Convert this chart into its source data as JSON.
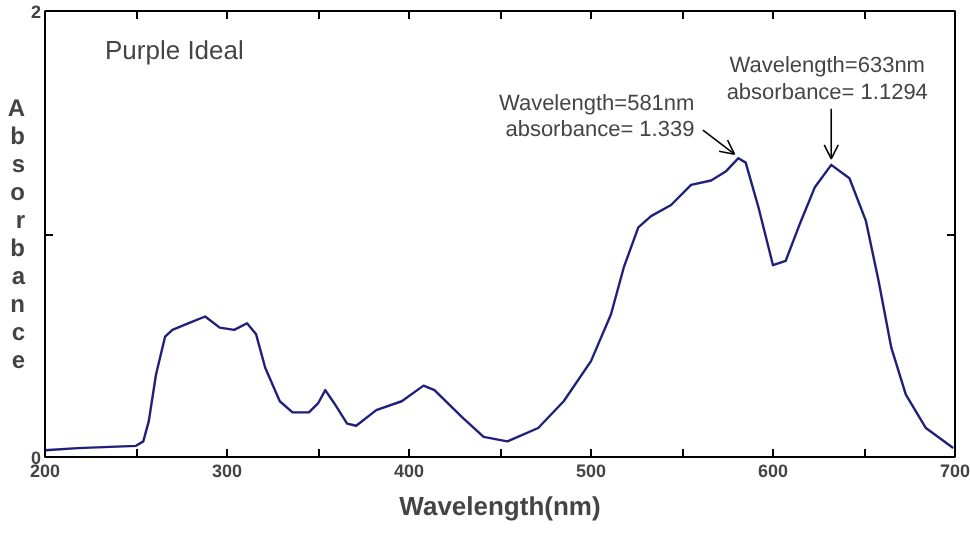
{
  "chart_data": {
    "type": "line",
    "title": "Purple Ideal",
    "xlabel": "Wavelength(nm)",
    "ylabel": "Absorbance",
    "xlim": [
      200,
      700
    ],
    "ylim": [
      0,
      2
    ],
    "xticks": [
      200,
      {
        "value": 250,
        "label": null
      },
      300,
      {
        "value": 350,
        "label": null
      },
      400,
      {
        "value": 450,
        "label": null
      },
      500,
      {
        "value": 550,
        "label": null
      },
      600,
      {
        "value": 650,
        "label": null
      },
      700
    ],
    "yticks": [
      0,
      {
        "value": 1,
        "label": null
      },
      2
    ],
    "grid": false,
    "marker": "none",
    "line_style": "solid",
    "annotations": [
      {
        "text": "Wavelength=581nm\nabsorbance= 1.339",
        "x": 581,
        "y": 1.34
      },
      {
        "text": "Wavelength=633nm\nabsorbance= 1.1294",
        "x": 632,
        "y": 1.31
      }
    ],
    "series": [
      {
        "color": "#1f1f7a",
        "x": [
          200,
          218,
          250,
          254,
          257,
          261,
          266,
          270,
          279,
          288,
          296,
          304,
          311,
          316,
          321,
          329,
          336,
          345,
          350,
          354,
          359,
          366,
          371,
          382,
          396,
          408,
          414,
          429,
          441,
          454,
          471,
          485,
          500,
          511,
          518,
          526,
          533,
          544,
          555,
          566,
          574,
          581,
          585,
          592,
          600,
          607,
          614,
          623,
          632,
          642,
          651,
          658,
          665,
          673,
          684,
          699
        ],
        "values": [
          0.03,
          0.04,
          0.05,
          0.07,
          0.16,
          0.37,
          0.54,
          0.57,
          0.6,
          0.63,
          0.58,
          0.57,
          0.6,
          0.55,
          0.4,
          0.25,
          0.2,
          0.2,
          0.24,
          0.3,
          0.24,
          0.15,
          0.14,
          0.21,
          0.25,
          0.32,
          0.3,
          0.18,
          0.09,
          0.07,
          0.13,
          0.25,
          0.43,
          0.64,
          0.85,
          1.03,
          1.08,
          1.13,
          1.22,
          1.24,
          1.28,
          1.34,
          1.32,
          1.12,
          0.86,
          0.88,
          1.03,
          1.21,
          1.31,
          1.25,
          1.06,
          0.79,
          0.49,
          0.28,
          0.13,
          0.04
        ]
      }
    ]
  }
}
